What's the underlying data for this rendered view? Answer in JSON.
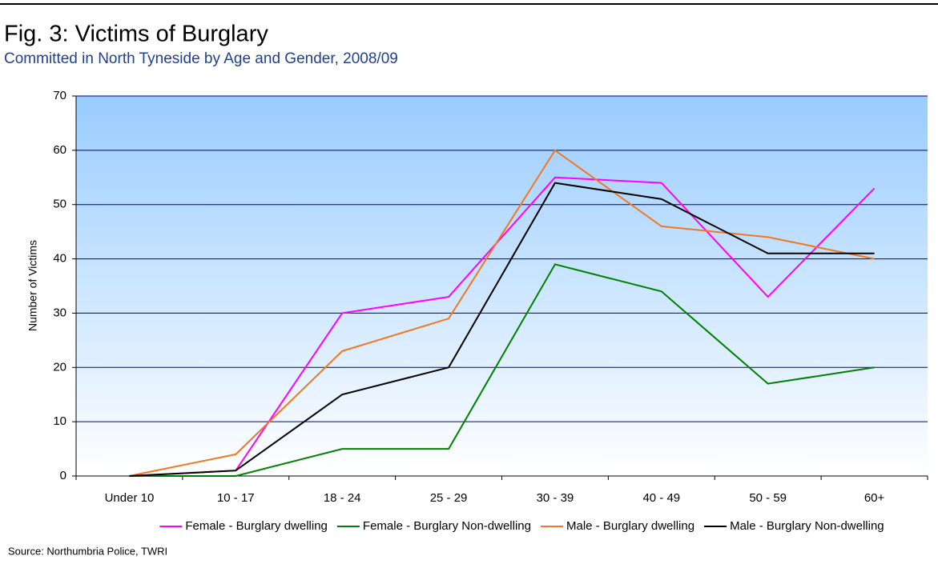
{
  "chart_data": {
    "type": "line",
    "title": "Fig. 3: Victims of Burglary",
    "subtitle": "Committed in North Tyneside by Age and Gender, 2008/09",
    "y_label": "Number of Victims",
    "source": "Source: Northumbria Police, TWRI",
    "categories": [
      "Under 10",
      "10 - 17",
      "18 - 24",
      "25 - 29",
      "30 - 39",
      "40 - 49",
      "50 - 59",
      "60+"
    ],
    "series": [
      {
        "name": "Female - Burglary dwelling",
        "color": "#ff00ff",
        "values": [
          0,
          1,
          30,
          33,
          55,
          54,
          33,
          53
        ]
      },
      {
        "name": "Female - Burglary Non-dwelling",
        "color": "#008000",
        "values": [
          0,
          0,
          5,
          5,
          39,
          34,
          17,
          20
        ]
      },
      {
        "name": "Male - Burglary dwelling",
        "color": "#f07820",
        "values": [
          0,
          4,
          23,
          29,
          60,
          46,
          44,
          40
        ]
      },
      {
        "name": "Male - Burglary Non-dwelling",
        "color": "#000000",
        "values": [
          0,
          1,
          15,
          20,
          54,
          51,
          41,
          41
        ]
      }
    ],
    "ylim": [
      0,
      70
    ],
    "yticks": [
      0,
      10,
      20,
      30,
      40,
      50,
      60,
      70
    ],
    "grid": true,
    "legend": "bottom"
  }
}
